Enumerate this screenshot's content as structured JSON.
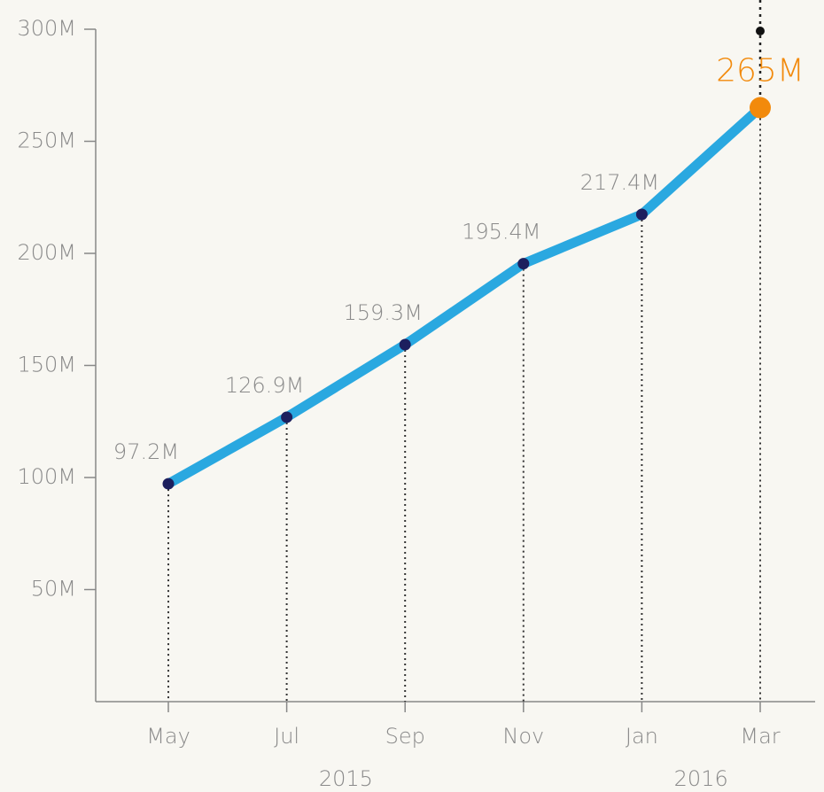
{
  "chart_data": {
    "type": "line",
    "categories": [
      "May",
      "Jul",
      "Sep",
      "Nov",
      "Jan",
      "Mar"
    ],
    "values": [
      97.2,
      126.9,
      159.3,
      195.4,
      217.4,
      265
    ],
    "value_labels": [
      "97.2M",
      "126.9M",
      "159.3M",
      "195.4M",
      "217.4M",
      "265M"
    ],
    "year_groups": [
      {
        "label": "2015",
        "count": 4
      },
      {
        "label": "2016",
        "count": 2
      }
    ],
    "color": "#2aa8e0",
    "marker_color": "#1c1f5e",
    "highlight_color": "#f28a0c",
    "ylim": [
      0,
      300
    ],
    "yticks": [
      {
        "value": 50,
        "label": "50M"
      },
      {
        "value": 100,
        "label": "100M"
      },
      {
        "value": 150,
        "label": "150M"
      },
      {
        "value": 200,
        "label": "200M"
      },
      {
        "value": 250,
        "label": "250M"
      },
      {
        "value": 300,
        "label": "300M"
      }
    ]
  }
}
